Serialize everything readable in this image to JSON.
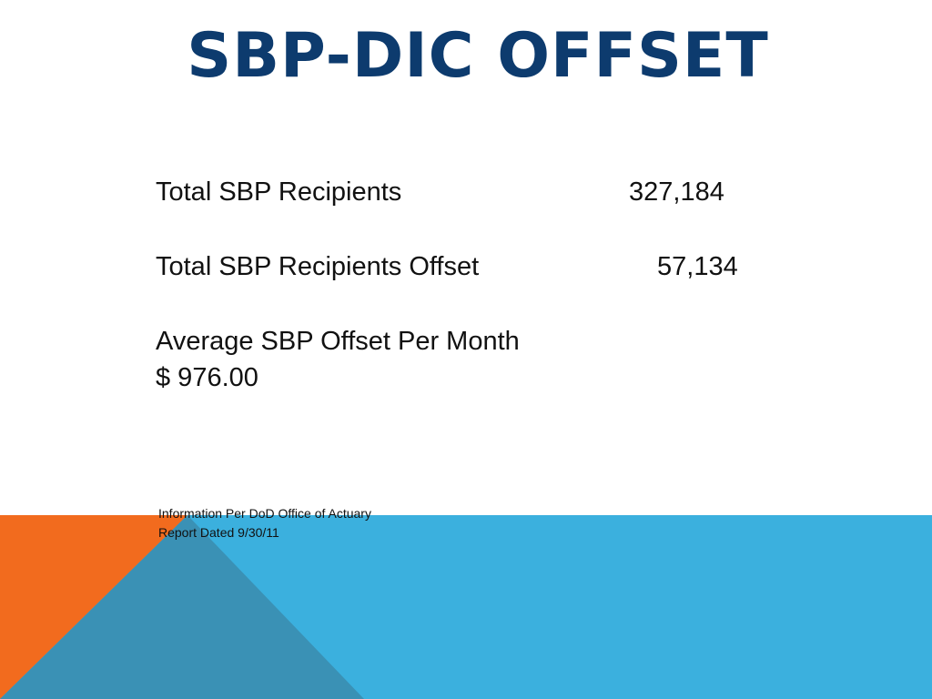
{
  "slide": {
    "title": "SBP-DIC OFFSET",
    "rows": [
      {
        "label": "Total SBP Recipients",
        "value": "327,184"
      },
      {
        "label": "Total SBP Recipients Offset",
        "value": "57,134"
      },
      {
        "label": "Average SBP Offset Per Month"
      },
      {
        "label": "$ 976.00"
      }
    ],
    "source": {
      "line1": "Information Per DoD Office of Actuary",
      "line2": "Report Dated 9/30/11"
    }
  },
  "colors": {
    "title": "#0d3b6e",
    "orange": "#f26b1e",
    "light_blue": "#3bb0de",
    "mid_blue": "#3a91b5"
  }
}
